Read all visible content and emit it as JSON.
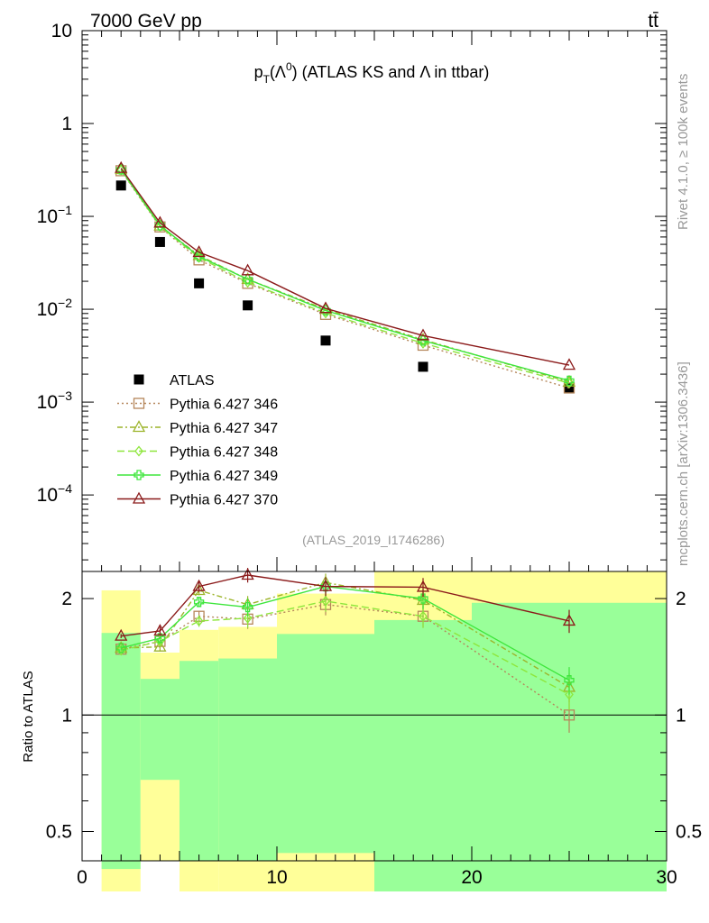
{
  "header": {
    "energy_label": "7000 GeV pp",
    "process_label": "tt̄"
  },
  "side_labels": {
    "rivet": "Rivet 4.1.0, ≥ 100k events",
    "source": "mcplots.cern.ch [arXiv:1306.3436]"
  },
  "analysis_id": "(ATLAS_2019_I1746286)",
  "colors": {
    "atlas": "#000000",
    "p346": "#b5865a",
    "p347": "#9cb42a",
    "p348": "#8ee63c",
    "p349": "#3ee63c",
    "p370": "#8b1a1a",
    "band_green": "#99ff99",
    "band_yellow": "#ffff99"
  },
  "chart_data": [
    {
      "type": "scatter",
      "panel": "main",
      "title": {
        "main": "p",
        "sub": "T",
        "lambda": "(Λ",
        "zero": "0",
        "rest": ") (ATLAS KS and Λ in ttbar)"
      },
      "yscale": "log",
      "ylim": [
        1.5e-05,
        10
      ],
      "xlim": [
        0,
        30
      ],
      "yticks": [
        {
          "v": 10,
          "label": "10"
        },
        {
          "v": 1,
          "label": "1"
        },
        {
          "v": 0.1,
          "base": "10",
          "exp": "−1"
        },
        {
          "v": 0.01,
          "base": "10",
          "exp": "−2"
        },
        {
          "v": 0.001,
          "base": "10",
          "exp": "−3"
        },
        {
          "v": 0.0001,
          "base": "10",
          "exp": "−4"
        }
      ],
      "x": [
        2,
        4,
        6,
        8.5,
        12.5,
        17.5,
        25
      ],
      "series": [
        {
          "key": "atlas",
          "name": "ATLAS",
          "marker": "square-filled",
          "dash": "",
          "values": [
            0.215,
            0.053,
            0.019,
            0.011,
            0.0046,
            0.0024,
            0.0014
          ]
        },
        {
          "key": "p346",
          "name": "Pythia 6.427 346",
          "marker": "square-open",
          "dash": "2,3",
          "values": [
            0.31,
            0.077,
            0.034,
            0.019,
            0.0088,
            0.0041,
            0.00142
          ]
        },
        {
          "key": "p347",
          "name": "Pythia 6.427 347",
          "marker": "triangle-open",
          "dash": "6,3,2,3",
          "values": [
            0.32,
            0.079,
            0.038,
            0.021,
            0.01,
            0.0047,
            0.00165
          ]
        },
        {
          "key": "p348",
          "name": "Pythia 6.427 348",
          "marker": "diamond-open",
          "dash": "8,4",
          "values": [
            0.315,
            0.078,
            0.036,
            0.0195,
            0.0091,
            0.0043,
            0.0016
          ]
        },
        {
          "key": "p349",
          "name": "Pythia 6.427 349",
          "marker": "cross-open",
          "dash": "",
          "values": [
            0.32,
            0.08,
            0.037,
            0.021,
            0.0097,
            0.0046,
            0.0017
          ]
        },
        {
          "key": "p370",
          "name": "Pythia 6.427 370",
          "marker": "triangle-open",
          "dash": "",
          "values": [
            0.33,
            0.085,
            0.041,
            0.026,
            0.0102,
            0.0052,
            0.0025
          ]
        }
      ]
    },
    {
      "type": "scatter",
      "panel": "ratio",
      "ylabel": "Ratio to ATLAS",
      "yscale": "log",
      "ylim": [
        0.42,
        2.35
      ],
      "xlim": [
        0,
        30
      ],
      "yticks": [
        0.5,
        1,
        2
      ],
      "xticks": [
        0,
        10,
        20,
        30
      ],
      "x": [
        2,
        4,
        6,
        8.5,
        12.5,
        17.5,
        25
      ],
      "bands": [
        {
          "x0": 1,
          "x1": 3,
          "green": [
            0.4,
            1.63
          ],
          "yellow": [
            0.35,
            2.1
          ]
        },
        {
          "x0": 3,
          "x1": 5,
          "green": [
            0.68,
            1.24
          ],
          "yellow": [
            0.42,
            1.45
          ]
        },
        {
          "x0": 5,
          "x1": 7,
          "green": [
            0.42,
            1.38
          ],
          "yellow": [
            0.35,
            1.66
          ]
        },
        {
          "x0": 7,
          "x1": 10,
          "green": [
            0.42,
            1.4
          ],
          "yellow": [
            0.35,
            1.69
          ]
        },
        {
          "x0": 10,
          "x1": 15,
          "green": [
            0.44,
            1.62
          ],
          "yellow": [
            0.35,
            2.06
          ]
        },
        {
          "x0": 15,
          "x1": 20,
          "green": [
            0.35,
            1.76
          ],
          "yellow": [
            0.35,
            2.35
          ]
        },
        {
          "x0": 20,
          "x1": 30,
          "green": [
            0.35,
            1.95
          ],
          "yellow": [
            0.35,
            2.35
          ]
        }
      ],
      "series": [
        {
          "key": "p346",
          "values": [
            1.48,
            1.55,
            1.8,
            1.77,
            1.93,
            1.8,
            1.0
          ],
          "errors": [
            0.02,
            0.04,
            0.06,
            0.1,
            0.12,
            0.12,
            0.1
          ]
        },
        {
          "key": "p347",
          "values": [
            1.49,
            1.5,
            2.1,
            1.93,
            2.2,
            1.98,
            1.18
          ],
          "errors": [
            0.02,
            0.04,
            0.06,
            0.1,
            0.12,
            0.12,
            0.1
          ]
        },
        {
          "key": "p348",
          "values": [
            1.47,
            1.55,
            1.75,
            1.78,
            1.97,
            1.8,
            1.13
          ],
          "errors": [
            0.02,
            0.04,
            0.06,
            0.1,
            0.12,
            0.12,
            0.1
          ]
        },
        {
          "key": "p349",
          "values": [
            1.49,
            1.58,
            1.96,
            1.9,
            2.15,
            2.0,
            1.23
          ],
          "errors": [
            0.02,
            0.04,
            0.06,
            0.1,
            0.12,
            0.12,
            0.1
          ]
        },
        {
          "key": "p370",
          "values": [
            1.6,
            1.65,
            2.15,
            2.3,
            2.15,
            2.14,
            1.75
          ],
          "errors": [
            0.02,
            0.04,
            0.07,
            0.1,
            0.12,
            0.12,
            0.12
          ]
        }
      ]
    }
  ]
}
